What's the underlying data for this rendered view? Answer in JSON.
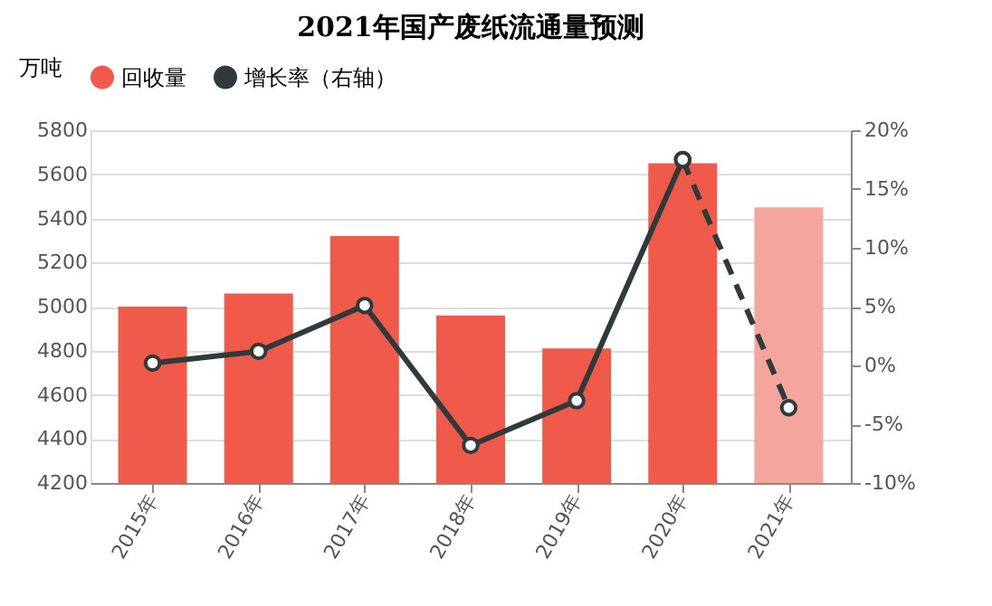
{
  "chart_data": {
    "type": "bar",
    "title": "2021年国产废纸流通量预测",
    "ylabel": "万吨",
    "categories": [
      "2015年",
      "2016年",
      "2017年",
      "2018年",
      "2019年",
      "2020年",
      "2021年"
    ],
    "series": [
      {
        "name": "回收量",
        "color": "#f05a4a",
        "colors": [
          "#f05a4a",
          "#f05a4a",
          "#f05a4a",
          "#f05a4a",
          "#f05a4a",
          "#f05a4a",
          "#f4a69c"
        ],
        "values": [
          5000,
          5060,
          5320,
          4960,
          4810,
          5650,
          5450
        ]
      },
      {
        "name": "增长率（右轴）",
        "type": "line",
        "axis": "y2",
        "color": "#2f3b3b",
        "marker": "circle",
        "line_style": "solid",
        "values": [
          0.2,
          1.2,
          5.1,
          -6.8,
          -3.0,
          17.5,
          null
        ]
      },
      {
        "type": "line",
        "axis": "y2",
        "color": "#2f3b3b",
        "marker": "circle",
        "line_style": "dashed",
        "values": [
          null,
          null,
          null,
          null,
          null,
          17.5,
          -3.6
        ]
      }
    ],
    "ylim": [
      4200,
      5800
    ],
    "yticks": [
      4200,
      4400,
      4600,
      4800,
      5000,
      5200,
      5400,
      5600,
      5800
    ],
    "y2lim": [
      -10,
      20
    ],
    "y2ticks": [
      {
        "value": -10,
        "label": "-10%"
      },
      {
        "value": -5,
        "label": "-5%"
      },
      {
        "value": 0,
        "label": "0%"
      },
      {
        "value": 5,
        "label": "5%"
      },
      {
        "value": 10,
        "label": "10%"
      },
      {
        "value": 15,
        "label": "15%"
      },
      {
        "value": 20,
        "label": "20%"
      }
    ],
    "grid": "y",
    "legend": "top"
  }
}
